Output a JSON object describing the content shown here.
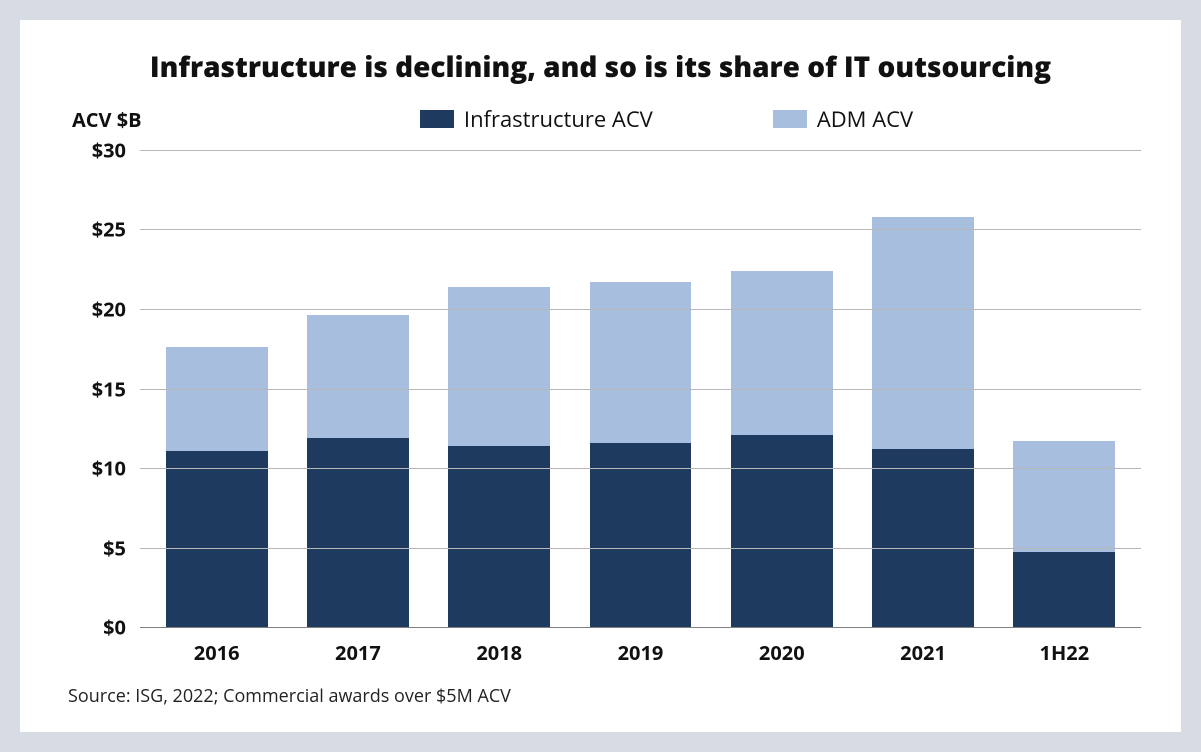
{
  "chart": {
    "type": "stacked-bar",
    "title": "Infrastructure is declining, and so is its share of IT outsourcing",
    "title_fontsize": 28,
    "ylabel": "ACV $B",
    "ylabel_fontsize": 20,
    "source": "Source: ISG, 2022; Commercial awards over $5M ACV",
    "source_fontsize": 18,
    "background_color": "#ffffff",
    "page_background": "#d7dce4",
    "grid_color": "#b7b7b7",
    "axis_color": "#808080",
    "tick_fontsize": 20,
    "tick_fontweight": 700,
    "legend_fontsize": 22,
    "ylim": [
      0,
      30
    ],
    "yticks": [
      0,
      5,
      10,
      15,
      20,
      25,
      30
    ],
    "ytick_labels": [
      "$0",
      "$5",
      "$10",
      "$15",
      "$20",
      "$25",
      "$30"
    ],
    "categories": [
      "2016",
      "2017",
      "2018",
      "2019",
      "2020",
      "2021",
      "1H22"
    ],
    "series": [
      {
        "name": "Infrastructure ACV",
        "color": "#1f3a5f",
        "values": [
          11.1,
          11.9,
          11.4,
          11.6,
          12.1,
          11.2,
          4.7
        ]
      },
      {
        "name": "ADM ACV",
        "color": "#a8bedf",
        "values": [
          6.5,
          7.7,
          10.0,
          10.1,
          10.3,
          14.6,
          7.0
        ]
      }
    ],
    "bar_width_pct": 72
  }
}
